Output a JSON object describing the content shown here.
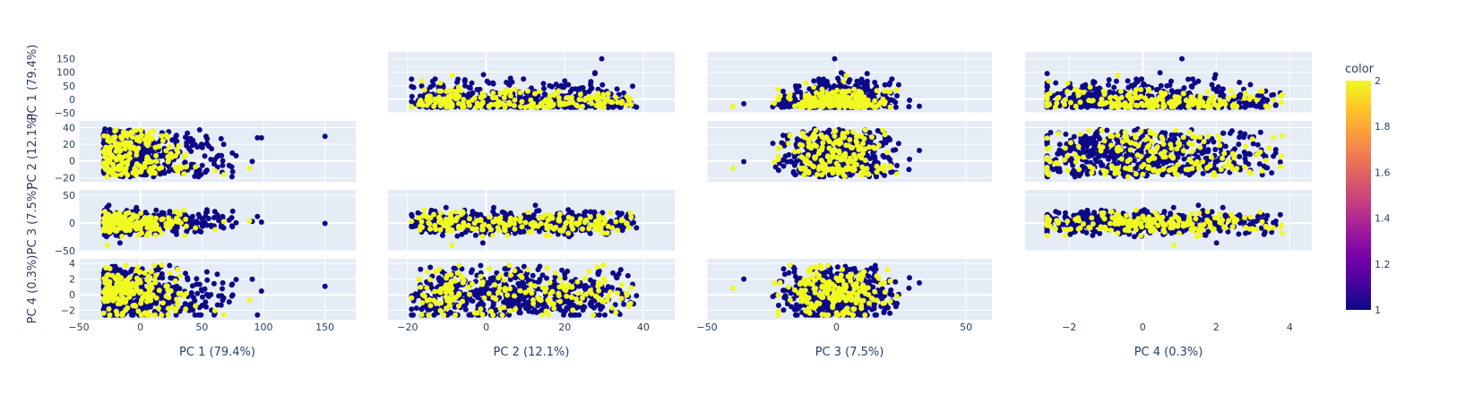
{
  "chart_data": {
    "type": "scatter",
    "subtype": "scatter-matrix",
    "dimensions": [
      "PC 1 (79.4%)",
      "PC 2 (12.1%)",
      "PC 3 (7.5%)",
      "PC 4 (0.3%)"
    ],
    "diagonal_visible": false,
    "point_colors": {
      "low": "#0d0887",
      "high": "#f0f921"
    },
    "axis_ranges": [
      [
        -50,
        175
      ],
      [
        -25,
        48
      ],
      [
        -50,
        60
      ],
      [
        -3.2,
        4.6
      ]
    ],
    "axis_ticks": [
      {
        "x": [
          -50,
          0,
          50,
          100,
          150
        ],
        "y": [
          -50,
          0,
          50,
          100,
          150
        ]
      },
      {
        "x": [
          -20,
          0,
          20,
          40
        ],
        "y": [
          -20,
          0,
          20,
          40
        ]
      },
      {
        "x": [
          -50,
          0,
          50
        ],
        "y": [
          -50,
          0,
          50
        ]
      },
      {
        "x": [
          -2,
          0,
          2,
          4
        ],
        "y": [
          -2,
          0,
          2,
          4
        ]
      }
    ],
    "grid": true,
    "colorbar": {
      "title": "color",
      "range": [
        1,
        2
      ],
      "ticks": [
        "1",
        "1.2",
        "1.4",
        "1.6",
        "1.8",
        "2"
      ],
      "colorscale": [
        "#0d0887",
        "#46039f",
        "#7201a8",
        "#9c179e",
        "#bd3786",
        "#d8576b",
        "#ed7953",
        "#fb9f3a",
        "#fdca26",
        "#f0f921"
      ]
    },
    "point_count": 700,
    "class_share": {
      "1": 0.72,
      "2": 0.28
    },
    "legend": "colorbar-right"
  }
}
